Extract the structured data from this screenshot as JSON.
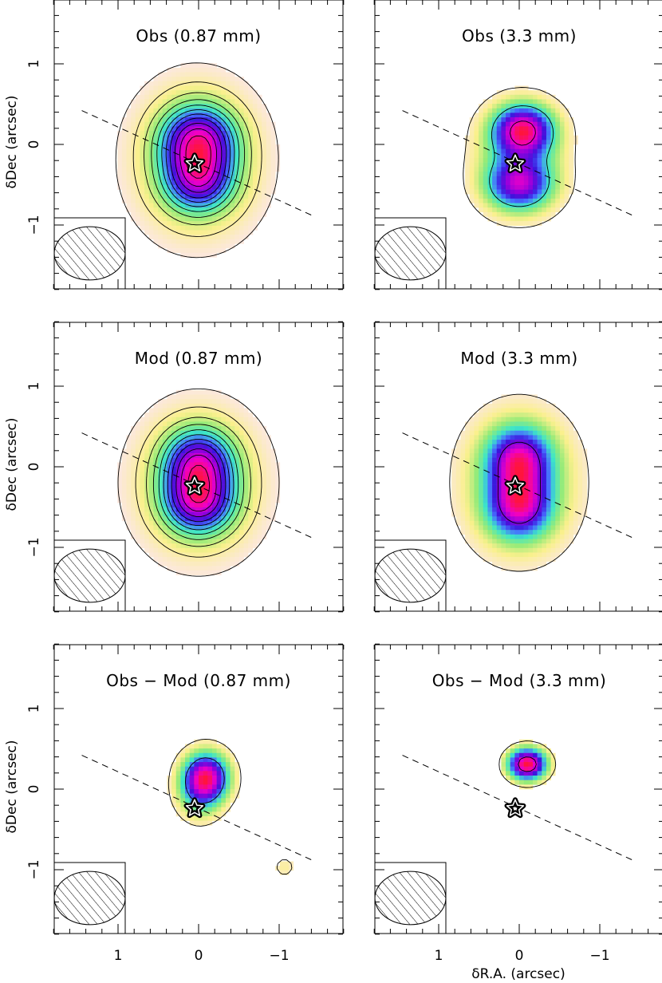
{
  "figure": {
    "xlabel": "δR.A. (arcsec)",
    "ylabel": "δDec (arcsec)"
  },
  "chart_data": [
    {
      "type": "heatmap",
      "title": "Obs (0.87 mm)",
      "wavelength_mm": 0.87,
      "xlim": [
        1.8,
        -1.8
      ],
      "ylim": [
        -1.8,
        1.8
      ],
      "xticks": [
        1,
        0,
        -1
      ],
      "yticks": [
        1,
        0,
        -1
      ],
      "show_xtick_labels": false,
      "show_ytick_labels": true,
      "star": [
        0.05,
        -0.24
      ],
      "disk_axis": {
        "from": [
          1.45,
          0.42
        ],
        "to": [
          -1.45,
          -0.9
        ]
      },
      "beam": {
        "major": 0.88,
        "minor": 0.66,
        "pa": 0
      },
      "blobs": [
        [
          0.0,
          0.06,
          0.3,
          0.28,
          1.0
        ],
        [
          0.0,
          -0.45,
          0.28,
          0.26,
          0.8
        ],
        [
          0.02,
          -0.2,
          0.5,
          0.6,
          0.7
        ]
      ],
      "contour_levels": [
        0.05,
        0.12,
        0.2,
        0.28,
        0.36,
        0.44,
        0.52,
        0.6,
        0.7,
        0.8,
        0.9
      ]
    },
    {
      "type": "heatmap",
      "title": "Obs (3.3 mm)",
      "wavelength_mm": 3.3,
      "xlim": [
        1.8,
        -1.8
      ],
      "ylim": [
        -1.8,
        1.8
      ],
      "xticks": [
        1,
        0,
        -1
      ],
      "yticks": [
        1,
        0,
        -1
      ],
      "show_xtick_labels": false,
      "show_ytick_labels": false,
      "star": [
        0.05,
        -0.24
      ],
      "disk_axis": {
        "from": [
          1.45,
          0.42
        ],
        "to": [
          -1.45,
          -0.9
        ]
      },
      "beam": {
        "major": 0.88,
        "minor": 0.66,
        "pa": 0
      },
      "blobs": [
        [
          -0.05,
          0.18,
          0.26,
          0.22,
          1.0
        ],
        [
          0.0,
          -0.5,
          0.28,
          0.22,
          0.75
        ],
        [
          0.0,
          -0.2,
          0.4,
          0.45,
          0.35
        ]
      ],
      "contour_levels": [
        0.08,
        0.4,
        0.85
      ]
    },
    {
      "type": "heatmap",
      "title": "Mod (0.87 mm)",
      "wavelength_mm": 0.87,
      "xlim": [
        1.8,
        -1.8
      ],
      "ylim": [
        -1.8,
        1.8
      ],
      "xticks": [
        1,
        0,
        -1
      ],
      "yticks": [
        1,
        0,
        -1
      ],
      "show_xtick_labels": false,
      "show_ytick_labels": true,
      "star": [
        0.05,
        -0.24
      ],
      "disk_axis": {
        "from": [
          1.45,
          0.42
        ],
        "to": [
          -1.45,
          -0.9
        ]
      },
      "beam": {
        "major": 0.88,
        "minor": 0.66,
        "pa": 0
      },
      "blobs": [
        [
          0.0,
          0.05,
          0.28,
          0.28,
          1.0
        ],
        [
          0.0,
          -0.45,
          0.28,
          0.26,
          1.0
        ],
        [
          0.0,
          -0.2,
          0.5,
          0.58,
          0.75
        ]
      ],
      "contour_levels": [
        0.05,
        0.12,
        0.2,
        0.28,
        0.36,
        0.44,
        0.52,
        0.6,
        0.7,
        0.8,
        0.92
      ]
    },
    {
      "type": "heatmap",
      "title": "Mod (3.3 mm)",
      "wavelength_mm": 3.3,
      "xlim": [
        1.8,
        -1.8
      ],
      "ylim": [
        -1.8,
        1.8
      ],
      "xticks": [
        1,
        0,
        -1
      ],
      "yticks": [
        1,
        0,
        -1
      ],
      "show_xtick_labels": false,
      "show_ytick_labels": false,
      "star": [
        0.05,
        -0.24
      ],
      "disk_axis": {
        "from": [
          1.45,
          0.42
        ],
        "to": [
          -1.45,
          -0.9
        ]
      },
      "beam": {
        "major": 0.88,
        "minor": 0.66,
        "pa": 0
      },
      "blobs": [
        [
          0.0,
          0.1,
          0.27,
          0.27,
          1.0
        ],
        [
          0.0,
          -0.5,
          0.27,
          0.27,
          1.0
        ],
        [
          0.0,
          -0.2,
          0.48,
          0.6,
          0.55
        ]
      ],
      "contour_levels": [
        0.07,
        0.7
      ]
    },
    {
      "type": "heatmap",
      "title": "Obs − Mod (0.87 mm)",
      "wavelength_mm": 0.87,
      "xlim": [
        1.8,
        -1.8
      ],
      "ylim": [
        -1.8,
        1.8
      ],
      "xticks": [
        1,
        0,
        -1
      ],
      "yticks": [
        1,
        0,
        -1
      ],
      "show_xtick_labels": true,
      "show_ytick_labels": true,
      "star": [
        0.05,
        -0.24
      ],
      "disk_axis": {
        "from": [
          1.45,
          0.42
        ],
        "to": [
          -1.45,
          -0.9
        ]
      },
      "beam": {
        "major": 0.88,
        "minor": 0.66,
        "pa": 0
      },
      "blobs": [
        [
          -0.1,
          0.15,
          0.2,
          0.22,
          1.0
        ],
        [
          0.0,
          -0.05,
          0.2,
          0.25,
          0.35
        ],
        [
          -1.07,
          -0.97,
          0.11,
          0.11,
          0.16
        ]
      ],
      "contour_levels": [
        0.09,
        0.5
      ]
    },
    {
      "type": "heatmap",
      "title": "Obs − Mod (3.3 mm)",
      "wavelength_mm": 3.3,
      "xlim": [
        1.8,
        -1.8
      ],
      "ylim": [
        -1.8,
        1.8
      ],
      "xticks": [
        1,
        0,
        -1
      ],
      "yticks": [
        1,
        0,
        -1
      ],
      "show_xtick_labels": true,
      "show_ytick_labels": false,
      "star": [
        0.05,
        -0.24
      ],
      "disk_axis": {
        "from": [
          1.45,
          0.42
        ],
        "to": [
          -1.45,
          -0.9
        ]
      },
      "beam": {
        "major": 0.88,
        "minor": 0.66,
        "pa": 0
      },
      "blobs": [
        [
          -0.1,
          0.31,
          0.17,
          0.14,
          1.0
        ]
      ],
      "contour_levels": [
        0.12,
        0.8
      ]
    }
  ]
}
